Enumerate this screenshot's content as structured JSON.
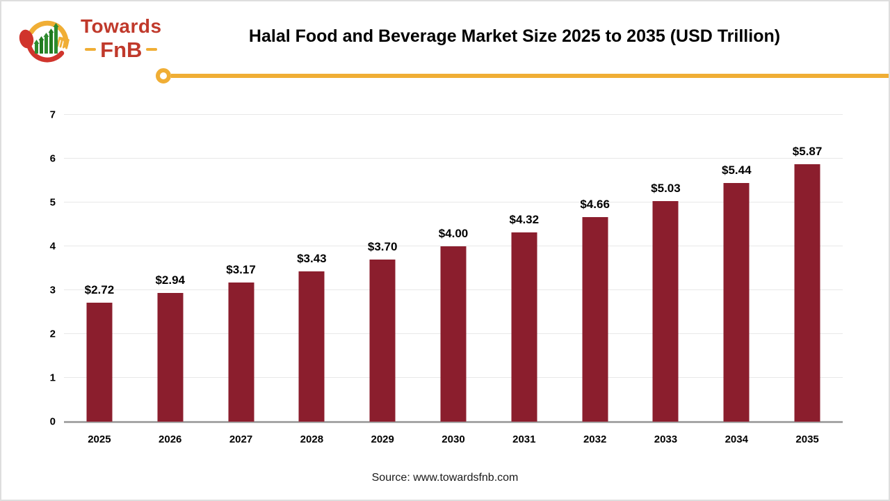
{
  "logo": {
    "name_top": "Towards",
    "name_bottom": "FnB"
  },
  "header": {
    "title": "Halal Food and Beverage Market Size 2025 to 2035 (USD Trillion)"
  },
  "chart_data": {
    "type": "bar",
    "title": "Halal Food and Beverage Market Size 2025 to 2035 (USD Trillion)",
    "categories": [
      "2025",
      "2026",
      "2027",
      "2028",
      "2029",
      "2030",
      "2031",
      "2032",
      "2033",
      "2034",
      "2035"
    ],
    "values": [
      2.72,
      2.94,
      3.17,
      3.43,
      3.7,
      4.0,
      4.32,
      4.66,
      5.03,
      5.44,
      5.87
    ],
    "value_labels": [
      "$2.72",
      "$2.94",
      "$3.17",
      "$3.43",
      "$3.70",
      "$4.00",
      "$4.32",
      "$4.66",
      "$5.03",
      "$5.44",
      "$5.87"
    ],
    "unit": "USD Trillion",
    "xlabel": "",
    "ylabel": "",
    "ylim": [
      0,
      7
    ],
    "yticks": [
      0,
      1,
      2,
      3,
      4,
      5,
      6,
      7
    ],
    "grid": true,
    "legend": "none",
    "bar_color": "#8b1e2d"
  },
  "footer": {
    "source": "Source: www.towardsfnb.com"
  },
  "colors": {
    "bar": "#8b1e2d",
    "accent": "#f0ae35",
    "logo_red": "#c0392b",
    "logo_green": "#2e8b2e",
    "gridline": "#e8e8e8",
    "axis_line": "#a6a6a6"
  }
}
